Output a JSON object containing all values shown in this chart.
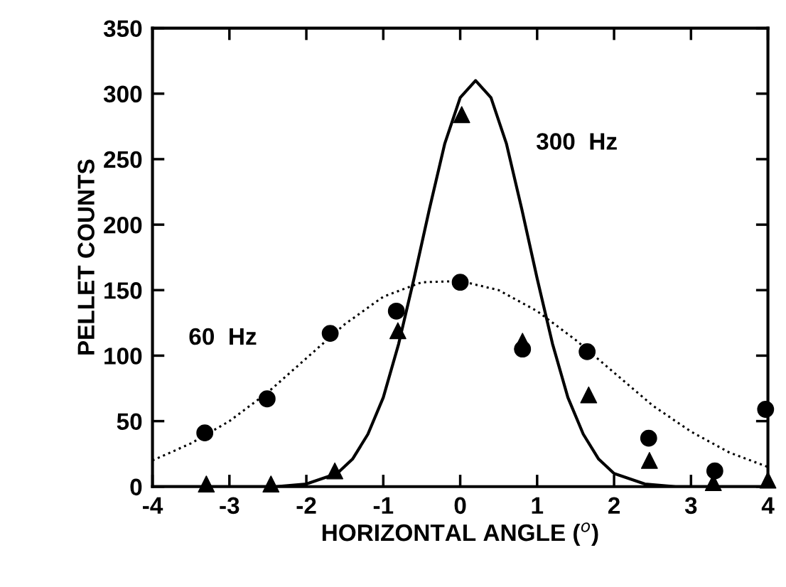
{
  "chart_data": {
    "type": "scatter",
    "xlabel": "HORIZONTAL ANGLE ($^{o}$)",
    "ylabel": "PELLET COUNTS",
    "xlim": [
      -4,
      4
    ],
    "xticks": [
      -4,
      -3,
      -2,
      -1,
      0,
      1,
      2,
      3,
      4
    ],
    "ylim": [
      0,
      350
    ],
    "yticks": [
      0,
      50,
      100,
      150,
      200,
      250,
      300,
      350
    ],
    "grid": false,
    "legend": false,
    "series": [
      {
        "type": "line",
        "name": "60  Hz",
        "line_style": "dotted",
        "marker": "none",
        "color": "#000000",
        "x": [
          -4,
          -3.5,
          -3,
          -2.5,
          -2,
          -1.5,
          -1,
          -0.5,
          0,
          0.5,
          1,
          1.5,
          2,
          2.5,
          3,
          3.5,
          4
        ],
        "values": [
          20,
          33,
          50,
          72,
          98,
          124,
          145,
          156,
          157,
          150,
          134,
          112,
          87,
          62,
          42,
          26,
          15
        ]
      },
      {
        "type": "line",
        "name": "300  Hz",
        "line_style": "solid",
        "marker": "none",
        "color": "#000000",
        "x": [
          -4,
          -2.8,
          -2.4,
          -2,
          -1.6,
          -1.4,
          -1.2,
          -1,
          -0.8,
          -0.6,
          -0.4,
          -0.2,
          0,
          0.2,
          0.4,
          0.6,
          0.8,
          1,
          1.2,
          1.4,
          1.6,
          1.8,
          2,
          2.4,
          2.8,
          4
        ],
        "values": [
          0,
          0,
          0,
          2,
          10,
          21,
          40,
          68,
          109,
          159,
          212,
          262,
          297,
          310,
          297,
          262,
          212,
          159,
          109,
          68,
          40,
          21,
          10,
          2,
          0,
          0
        ]
      },
      {
        "marker": "circle",
        "color": "#000000",
        "x": [
          -3.32,
          -2.51,
          -1.69,
          -0.83,
          0,
          0.81,
          1.65,
          2.45,
          3.31,
          3.97
        ],
        "values": [
          41,
          67,
          117,
          134,
          156,
          105,
          103,
          37,
          12,
          59
        ]
      },
      {
        "marker": "triangle",
        "color": "#000000",
        "x": [
          -3.3,
          -2.46,
          -1.63,
          -0.81,
          0.02,
          0.81,
          1.67,
          2.46,
          3.29,
          4.0
        ],
        "values": [
          2,
          2,
          12,
          119,
          284,
          111,
          70,
          20,
          3,
          5
        ]
      }
    ]
  }
}
